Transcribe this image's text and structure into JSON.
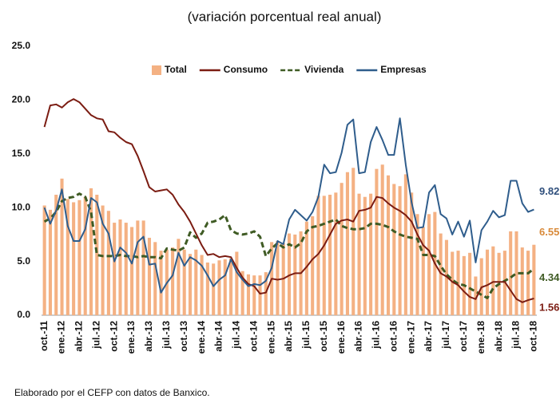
{
  "chart_data": {
    "type": "bar_line",
    "title": "(variación porcentual real anual)",
    "footnote": "Elaborado por el CEFP con datos de Banxico.",
    "categories": [
      "oct.-11",
      null,
      null,
      "ene.-12",
      null,
      null,
      "abr.-12",
      null,
      null,
      "jul.-12",
      null,
      null,
      "oct.-12",
      null,
      null,
      "ene.-13",
      null,
      null,
      "abr.-13",
      null,
      null,
      "jul.-13",
      null,
      null,
      "oct.-13",
      null,
      null,
      "ene.-14",
      null,
      null,
      "abr.-14",
      null,
      null,
      "jul.-14",
      null,
      null,
      "oct.-14",
      null,
      null,
      "ene.-15",
      null,
      null,
      "abr.-15",
      null,
      null,
      "jul.-15",
      null,
      null,
      "oct.-15",
      null,
      null,
      "ene.-16",
      null,
      null,
      "abr.-16",
      null,
      null,
      "jul.-16",
      null,
      null,
      "oct.-16",
      null,
      null,
      "ene.-17",
      null,
      null,
      "abr.-17",
      null,
      null,
      "jul.-17",
      null,
      null,
      "oct.-17",
      null,
      null,
      "ene.-18",
      null,
      null,
      "abr.-18",
      null,
      null,
      "jul.-18",
      null,
      null,
      "oct.-18"
    ],
    "series": [
      {
        "name": "Total",
        "kind": "bar",
        "color": "#f4b183",
        "label_color": "#d98a3a",
        "values": [
          10.2,
          9.8,
          11.2,
          12.7,
          10.8,
          10.5,
          10.7,
          11.0,
          11.8,
          11.2,
          10.2,
          9.7,
          8.6,
          8.9,
          8.6,
          8.2,
          8.8,
          8.8,
          7.2,
          6.8,
          6.0,
          6.1,
          6.3,
          7.1,
          6.1,
          5.7,
          6.1,
          5.6,
          4.9,
          4.8,
          5.1,
          5.2,
          5.3,
          5.9,
          4.1,
          3.8,
          3.7,
          3.7,
          4.0,
          6.8,
          6.9,
          6.7,
          7.6,
          7.5,
          7.8,
          8.7,
          9.2,
          11.1,
          11.1,
          11.2,
          11.4,
          12.3,
          13.3,
          13.7,
          11.3,
          11.0,
          11.3,
          13.6,
          14.0,
          13.0,
          12.2,
          12.0,
          13.1,
          11.4,
          9.4,
          8.2,
          9.4,
          9.6,
          7.6,
          7.0,
          5.9,
          6.0,
          5.5,
          5.8,
          3.6,
          5.3,
          6.1,
          6.4,
          5.8,
          6.0,
          7.8,
          7.8,
          6.3,
          6.0,
          6.55
        ]
      },
      {
        "name": "Consumo",
        "kind": "line",
        "color": "#7b1c12",
        "label_color": "#7b1c12",
        "values": [
          17.5,
          19.5,
          19.6,
          19.3,
          19.8,
          20.1,
          19.8,
          19.2,
          18.6,
          18.3,
          18.2,
          17.1,
          17.0,
          16.5,
          16.1,
          15.9,
          14.8,
          13.4,
          11.9,
          11.5,
          11.6,
          11.7,
          11.2,
          10.3,
          9.6,
          8.7,
          7.6,
          6.5,
          5.6,
          5.7,
          5.4,
          5.5,
          5.4,
          4.4,
          3.5,
          2.9,
          2.7,
          2.0,
          2.1,
          3.4,
          3.3,
          3.4,
          3.7,
          3.9,
          3.9,
          4.5,
          5.2,
          5.7,
          6.5,
          7.5,
          8.5,
          8.8,
          8.9,
          8.7,
          9.7,
          9.8,
          10.0,
          11.0,
          10.9,
          10.4,
          10.0,
          9.7,
          9.3,
          8.7,
          7.5,
          6.5,
          6.0,
          4.8,
          3.9,
          3.6,
          3.1,
          2.8,
          2.2,
          1.7,
          1.5,
          2.6,
          2.8,
          3.1,
          3.1,
          3.1,
          2.3,
          1.5,
          1.2,
          1.4,
          1.56
        ]
      },
      {
        "name": "Vivienda",
        "kind": "dashed",
        "color": "#3f5b24",
        "label_color": "#3f5b24",
        "values": [
          8.7,
          9.0,
          9.6,
          10.6,
          10.9,
          11.0,
          11.3,
          11.0,
          9.6,
          5.6,
          5.5,
          5.5,
          5.5,
          5.6,
          5.5,
          5.5,
          5.4,
          5.5,
          5.4,
          5.4,
          5.3,
          6.2,
          6.1,
          6.0,
          6.3,
          7.7,
          7.2,
          7.6,
          8.6,
          8.7,
          8.9,
          9.3,
          7.9,
          7.6,
          7.5,
          7.6,
          7.8,
          7.3,
          5.5,
          6.2,
          6.7,
          6.3,
          6.6,
          6.3,
          6.7,
          7.8,
          8.2,
          8.3,
          8.5,
          8.7,
          8.9,
          8.3,
          8.1,
          8.0,
          8.0,
          8.1,
          8.5,
          8.5,
          8.4,
          8.2,
          7.8,
          7.5,
          7.3,
          7.2,
          7.1,
          5.6,
          5.6,
          5.5,
          4.6,
          3.8,
          3.3,
          2.9,
          2.8,
          2.5,
          2.2,
          1.9,
          1.6,
          2.5,
          2.9,
          3.2,
          3.5,
          3.9,
          3.9,
          3.9,
          4.34
        ]
      },
      {
        "name": "Empresas",
        "kind": "line",
        "color": "#2f5d8c",
        "label_color": "#2f4f7c",
        "values": [
          10.0,
          8.5,
          9.7,
          11.7,
          8.3,
          6.9,
          6.9,
          8.0,
          10.9,
          10.5,
          8.5,
          7.6,
          5.0,
          6.3,
          5.8,
          4.8,
          6.8,
          7.3,
          4.7,
          4.8,
          2.1,
          3.0,
          3.7,
          5.8,
          4.6,
          5.4,
          5.1,
          4.6,
          3.7,
          2.7,
          3.3,
          3.7,
          5.2,
          4.0,
          3.3,
          2.7,
          2.9,
          2.8,
          3.2,
          4.4,
          6.9,
          6.6,
          8.9,
          9.8,
          9.3,
          8.8,
          9.6,
          11.0,
          14.0,
          13.2,
          13.3,
          15.1,
          17.7,
          18.2,
          13.2,
          13.3,
          16.1,
          17.5,
          16.3,
          14.9,
          14.9,
          18.3,
          14.0,
          10.5,
          8.1,
          8.2,
          11.4,
          12.1,
          9.4,
          9.0,
          7.5,
          8.7,
          7.3,
          8.8,
          4.9,
          7.9,
          8.7,
          9.7,
          9.1,
          9.3,
          12.5,
          12.5,
          10.4,
          9.6,
          9.82
        ]
      }
    ],
    "ylim": [
      0,
      25
    ],
    "yticks": [
      {
        "value": 0,
        "label": "0.0"
      },
      {
        "value": 5,
        "label": "5.0"
      },
      {
        "value": 10,
        "label": "10.0"
      },
      {
        "value": 15,
        "label": "15.0"
      },
      {
        "value": 20,
        "label": "20.0"
      },
      {
        "value": 25,
        "label": "25.0"
      }
    ],
    "grid": false,
    "legend": "top"
  }
}
